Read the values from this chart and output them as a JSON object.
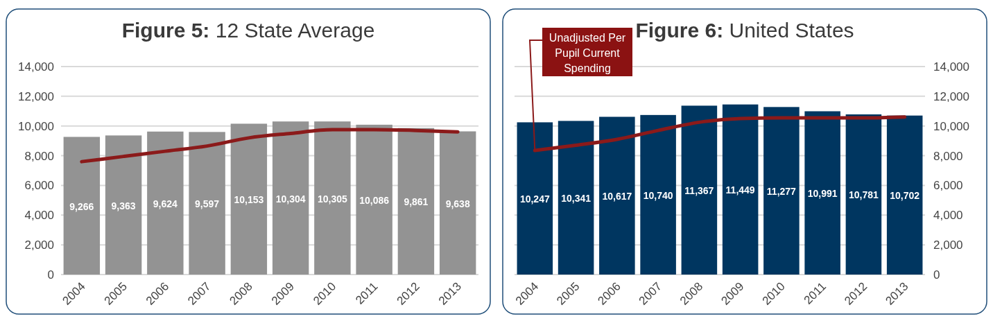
{
  "chart_data": [
    {
      "type": "bar",
      "title": "Figure 5: 12 State Average",
      "categories": [
        "2004",
        "2005",
        "2006",
        "2007",
        "2008",
        "2009",
        "2010",
        "2011",
        "2012",
        "2013"
      ],
      "series": [
        {
          "type": "bar",
          "color": "#939393",
          "values": [
            9266,
            9363,
            9624,
            9597,
            10153,
            10304,
            10305,
            10086,
            9861,
            9638
          ],
          "value_labels": [
            "9,266",
            "9,363",
            "9,624",
            "9,597",
            "10,153",
            "10,304",
            "10,305",
            "10,086",
            "9,861",
            "9,638"
          ]
        },
        {
          "type": "line",
          "color": "#8b1a1a",
          "values": [
            7600,
            7950,
            8300,
            8650,
            9200,
            9500,
            9750,
            9750,
            9700,
            9600
          ]
        }
      ],
      "ylim": [
        0,
        14000
      ],
      "yticks": [
        {
          "value": 0,
          "label": "0"
        },
        {
          "value": 2000,
          "label": "2,000"
        },
        {
          "value": 4000,
          "label": "4,000"
        },
        {
          "value": 6000,
          "label": "6,000"
        },
        {
          "value": 8000,
          "label": "8,000"
        },
        {
          "value": 10000,
          "label": "10,000"
        },
        {
          "value": 12000,
          "label": "12,000"
        },
        {
          "value": 14000,
          "label": "14,000"
        }
      ],
      "grid": "y"
    },
    {
      "type": "bar",
      "title": "Figure 6: United States",
      "categories": [
        "2004",
        "2005",
        "2006",
        "2007",
        "2008",
        "2009",
        "2010",
        "2011",
        "2012",
        "2013"
      ],
      "series": [
        {
          "type": "bar",
          "axis": "y2",
          "color": "#003660",
          "values": [
            10247,
            10341,
            10617,
            10740,
            11367,
            11449,
            11277,
            10991,
            10781,
            10702
          ],
          "value_labels": [
            "10,247",
            "10,341",
            "10,617",
            "10,740",
            "11,367",
            "11,449",
            "11,277",
            "10,991",
            "10,781",
            "10,702"
          ]
        },
        {
          "type": "line",
          "axis": "y2",
          "name": "Unadjusted Per Pupil Current Spending",
          "color": "#8b1a1a",
          "values": [
            8350,
            8700,
            9100,
            9700,
            10250,
            10500,
            10550,
            10550,
            10550,
            10600
          ]
        }
      ],
      "y2lim": [
        0,
        14000
      ],
      "y2ticks": [
        {
          "value": 0,
          "label": "0"
        },
        {
          "value": 2000,
          "label": "2,000"
        },
        {
          "value": 4000,
          "label": "4,000"
        },
        {
          "value": 6000,
          "label": "6,000"
        },
        {
          "value": 8000,
          "label": "8,000"
        },
        {
          "value": 10000,
          "label": "10,000"
        },
        {
          "value": 12000,
          "label": "12,000"
        },
        {
          "value": 14000,
          "label": "14,000"
        }
      ],
      "grid": "y"
    }
  ]
}
